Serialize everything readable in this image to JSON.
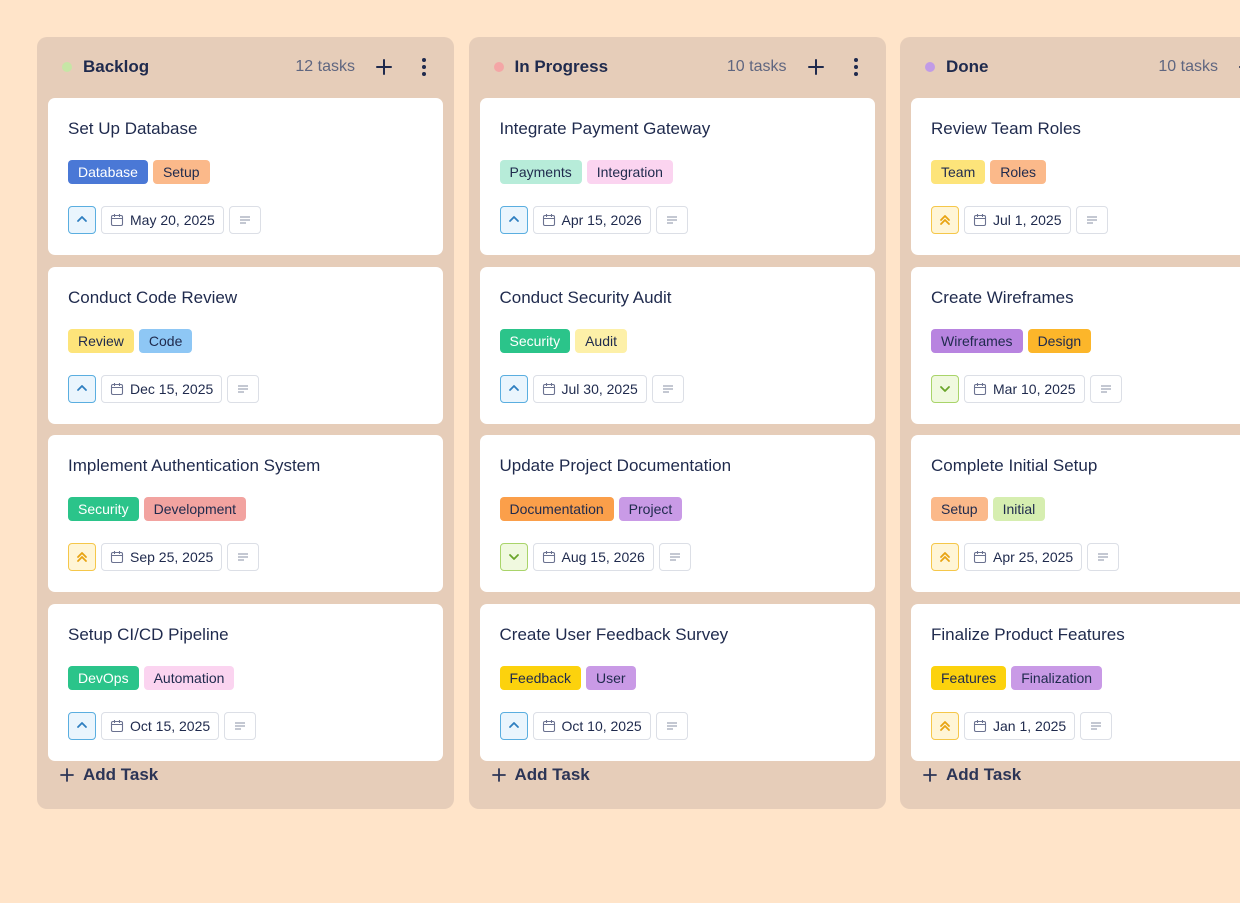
{
  "columns": [
    {
      "title": "Backlog",
      "dot_color": "#c6e6a6",
      "count": "12 tasks",
      "add_label": "Add Task",
      "cards": [
        {
          "title": "Set Up Database",
          "priority": "up",
          "date": "May 20, 2025",
          "tags": [
            {
              "label": "Database",
              "color": "#4a78d6",
              "text_color": "#ffffff"
            },
            {
              "label": "Setup",
              "color": "#fbb98a",
              "text_color": "#1f2a4d"
            }
          ]
        },
        {
          "title": "Conduct Code Review",
          "priority": "up",
          "date": "Dec 15, 2025",
          "tags": [
            {
              "label": "Review",
              "color": "#fde47a",
              "text_color": "#1f2a4d"
            },
            {
              "label": "Code",
              "color": "#8ec7f5",
              "text_color": "#1f2a4d"
            }
          ]
        },
        {
          "title": "Implement Authentication System",
          "priority": "double-up",
          "date": "Sep 25, 2025",
          "tags": [
            {
              "label": "Security",
              "color": "#2bc48a",
              "text_color": "#ffffff"
            },
            {
              "label": "Development",
              "color": "#f2a3a0",
              "text_color": "#1f2a4d"
            }
          ]
        },
        {
          "title": "Setup CI/CD Pipeline",
          "priority": "up",
          "date": "Oct 15, 2025",
          "tags": [
            {
              "label": "DevOps",
              "color": "#2bc48a",
              "text_color": "#ffffff"
            },
            {
              "label": "Automation",
              "color": "#fbd4f0",
              "text_color": "#1f2a4d"
            }
          ]
        }
      ]
    },
    {
      "title": "In Progress",
      "dot_color": "#f4a6a6",
      "count": "10 tasks",
      "add_label": "Add Task",
      "cards": [
        {
          "title": "Integrate Payment Gateway",
          "priority": "up",
          "date": "Apr 15, 2026",
          "tags": [
            {
              "label": "Payments",
              "color": "#b7ecd9",
              "text_color": "#1f2a4d"
            },
            {
              "label": "Integration",
              "color": "#fbd4f0",
              "text_color": "#1f2a4d"
            }
          ]
        },
        {
          "title": "Conduct Security Audit",
          "priority": "up",
          "date": "Jul 30, 2025",
          "tags": [
            {
              "label": "Security",
              "color": "#2bc48a",
              "text_color": "#ffffff"
            },
            {
              "label": "Audit",
              "color": "#fdf0a8",
              "text_color": "#1f2a4d"
            }
          ]
        },
        {
          "title": "Update Project Documentation",
          "priority": "down",
          "date": "Aug 15, 2026",
          "tags": [
            {
              "label": "Documentation",
              "color": "#fb9f4a",
              "text_color": "#1f2a4d"
            },
            {
              "label": "Project",
              "color": "#c99ae6",
              "text_color": "#1f2a4d"
            }
          ]
        },
        {
          "title": "Create User Feedback Survey",
          "priority": "up",
          "date": "Oct 10, 2025",
          "tags": [
            {
              "label": "Feedback",
              "color": "#fcd20d",
              "text_color": "#1f2a4d"
            },
            {
              "label": "User",
              "color": "#c99ae6",
              "text_color": "#1f2a4d"
            }
          ]
        }
      ]
    },
    {
      "title": "Done",
      "dot_color": "#c19be6",
      "count": "10 tasks",
      "add_label": "Add Task",
      "cards": [
        {
          "title": "Review Team Roles",
          "priority": "double-up",
          "date": "Jul 1, 2025",
          "tags": [
            {
              "label": "Team",
              "color": "#fde47a",
              "text_color": "#1f2a4d"
            },
            {
              "label": "Roles",
              "color": "#fbb98a",
              "text_color": "#1f2a4d"
            }
          ]
        },
        {
          "title": "Create Wireframes",
          "priority": "down",
          "date": "Mar 10, 2025",
          "tags": [
            {
              "label": "Wireframes",
              "color": "#b884e0",
              "text_color": "#1f2a4d"
            },
            {
              "label": "Design",
              "color": "#fcb62a",
              "text_color": "#1f2a4d"
            }
          ]
        },
        {
          "title": "Complete Initial Setup",
          "priority": "double-up",
          "date": "Apr 25, 2025",
          "tags": [
            {
              "label": "Setup",
              "color": "#fbb98a",
              "text_color": "#1f2a4d"
            },
            {
              "label": "Initial",
              "color": "#d6eeb0",
              "text_color": "#1f2a4d"
            }
          ]
        },
        {
          "title": "Finalize Product Features",
          "priority": "double-up",
          "date": "Jan 1, 2025",
          "tags": [
            {
              "label": "Features",
              "color": "#fcd20d",
              "text_color": "#1f2a4d"
            },
            {
              "label": "Finalization",
              "color": "#c99ae6",
              "text_color": "#1f2a4d"
            }
          ]
        }
      ]
    }
  ]
}
